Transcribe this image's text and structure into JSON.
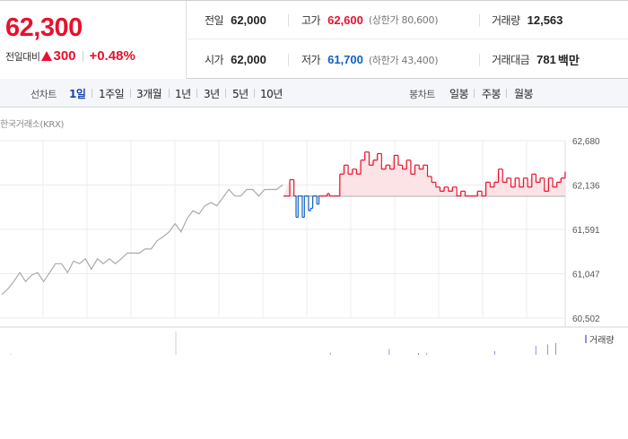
{
  "quote": {
    "price": "62,300",
    "change_label": "전일대비",
    "change_amount": "300",
    "change_percent": "+0.48%"
  },
  "stats": {
    "prev_close": {
      "label": "전일",
      "value": "62,000"
    },
    "high": {
      "label": "고가",
      "value": "62,600",
      "limit_label": "(상한가 80,600)"
    },
    "volume": {
      "label": "거래량",
      "value": "12,563"
    },
    "open": {
      "label": "시가",
      "value": "62,000"
    },
    "low": {
      "label": "저가",
      "value": "61,700",
      "limit_label": "(하한가 43,400)"
    },
    "trade_value": {
      "label": "거래대금",
      "value": "781",
      "unit": "백만"
    }
  },
  "period_bar": {
    "line_label": "선차트",
    "line_periods": [
      "1일",
      "1주일",
      "3개월",
      "1년",
      "3년",
      "5년",
      "10년"
    ],
    "active_period": "1일",
    "candle_label": "봉차트",
    "candle_periods": [
      "일봉",
      "주봉",
      "월봉"
    ]
  },
  "exchange_label": "한국거래소(KRX)",
  "volume_legend": "거래량",
  "colors": {
    "up": "#e8112d",
    "down": "#1261c4",
    "prev_line": "#aaaaaa",
    "volume": "#9a8fd0"
  },
  "chart_data": {
    "type": "line",
    "y_ticks": [
      "62,680",
      "62,136",
      "61,591",
      "61,047",
      "60,502"
    ],
    "ylim": [
      60502,
      62680
    ],
    "reference_value": 62000,
    "grid": true,
    "prev_day_series": [
      [
        0,
        60790
      ],
      [
        2,
        60860
      ],
      [
        4,
        60950
      ],
      [
        6,
        61060
      ],
      [
        8,
        60950
      ],
      [
        10,
        61030
      ],
      [
        12,
        61060
      ],
      [
        14,
        60950
      ],
      [
        16,
        61060
      ],
      [
        18,
        61170
      ],
      [
        20,
        61170
      ],
      [
        22,
        61060
      ],
      [
        24,
        61200
      ],
      [
        26,
        61170
      ],
      [
        28,
        61230
      ],
      [
        30,
        61100
      ],
      [
        32,
        61230
      ],
      [
        34,
        61170
      ],
      [
        36,
        61230
      ],
      [
        38,
        61170
      ],
      [
        40,
        61230
      ],
      [
        42,
        61300
      ],
      [
        44,
        61300
      ],
      [
        46,
        61300
      ],
      [
        48,
        61350
      ],
      [
        50,
        61350
      ],
      [
        52,
        61450
      ],
      [
        54,
        61500
      ],
      [
        56,
        61560
      ],
      [
        58,
        61660
      ],
      [
        60,
        61560
      ],
      [
        62,
        61720
      ],
      [
        64,
        61820
      ],
      [
        66,
        61780
      ],
      [
        68,
        61880
      ],
      [
        70,
        61920
      ],
      [
        72,
        61880
      ],
      [
        74,
        61980
      ],
      [
        76,
        62080
      ],
      [
        78,
        62000
      ],
      [
        80,
        62000
      ],
      [
        82,
        62080
      ],
      [
        84,
        62080
      ],
      [
        86,
        62000
      ],
      [
        88,
        62080
      ],
      [
        90,
        62080
      ],
      [
        92,
        62080
      ],
      [
        94,
        62136
      ]
    ],
    "today_series": [
      [
        0,
        62000
      ],
      [
        3,
        62200
      ],
      [
        5,
        62000
      ],
      [
        6,
        61740
      ],
      [
        7,
        62000
      ],
      [
        9,
        61740
      ],
      [
        10,
        62000
      ],
      [
        12,
        61820
      ],
      [
        13,
        61850
      ],
      [
        14,
        62000
      ],
      [
        16,
        61900
      ],
      [
        17,
        62000
      ],
      [
        20,
        62000
      ],
      [
        21,
        62030
      ],
      [
        22,
        62000
      ],
      [
        26,
        62000
      ],
      [
        27,
        62270
      ],
      [
        29,
        62380
      ],
      [
        31,
        62270
      ],
      [
        33,
        62330
      ],
      [
        35,
        62270
      ],
      [
        37,
        62440
      ],
      [
        39,
        62540
      ],
      [
        41,
        62380
      ],
      [
        43,
        62440
      ],
      [
        45,
        62520
      ],
      [
        47,
        62330
      ],
      [
        49,
        62380
      ],
      [
        51,
        62330
      ],
      [
        53,
        62500
      ],
      [
        55,
        62380
      ],
      [
        57,
        62330
      ],
      [
        59,
        62440
      ],
      [
        61,
        62270
      ],
      [
        63,
        62380
      ],
      [
        65,
        62330
      ],
      [
        67,
        62380
      ],
      [
        69,
        62240
      ],
      [
        71,
        62170
      ],
      [
        73,
        62110
      ],
      [
        75,
        62060
      ],
      [
        77,
        62110
      ],
      [
        79,
        62060
      ],
      [
        81,
        62110
      ],
      [
        83,
        62000
      ],
      [
        85,
        62060
      ],
      [
        87,
        62000
      ],
      [
        89,
        62000
      ],
      [
        91,
        62000
      ],
      [
        93,
        62060
      ],
      [
        95,
        62000
      ],
      [
        97,
        62170
      ],
      [
        99,
        62110
      ],
      [
        101,
        62170
      ],
      [
        103,
        62330
      ],
      [
        105,
        62170
      ],
      [
        107,
        62220
      ],
      [
        109,
        62110
      ],
      [
        111,
        62220
      ],
      [
        113,
        62110
      ],
      [
        115,
        62220
      ],
      [
        117,
        62110
      ],
      [
        119,
        62270
      ],
      [
        121,
        62170
      ],
      [
        123,
        62220
      ],
      [
        125,
        62060
      ],
      [
        127,
        62220
      ],
      [
        129,
        62110
      ],
      [
        131,
        62170
      ],
      [
        133,
        62220
      ],
      [
        135,
        62300
      ]
    ],
    "volume_bars": [
      [
        40,
        0.08
      ],
      [
        90,
        0.22
      ],
      [
        115,
        0.07
      ],
      [
        122,
        0.06
      ],
      [
        180,
        0.14
      ],
      [
        215,
        0.34
      ],
      [
        225,
        0.4
      ],
      [
        232,
        0.46
      ]
    ]
  }
}
